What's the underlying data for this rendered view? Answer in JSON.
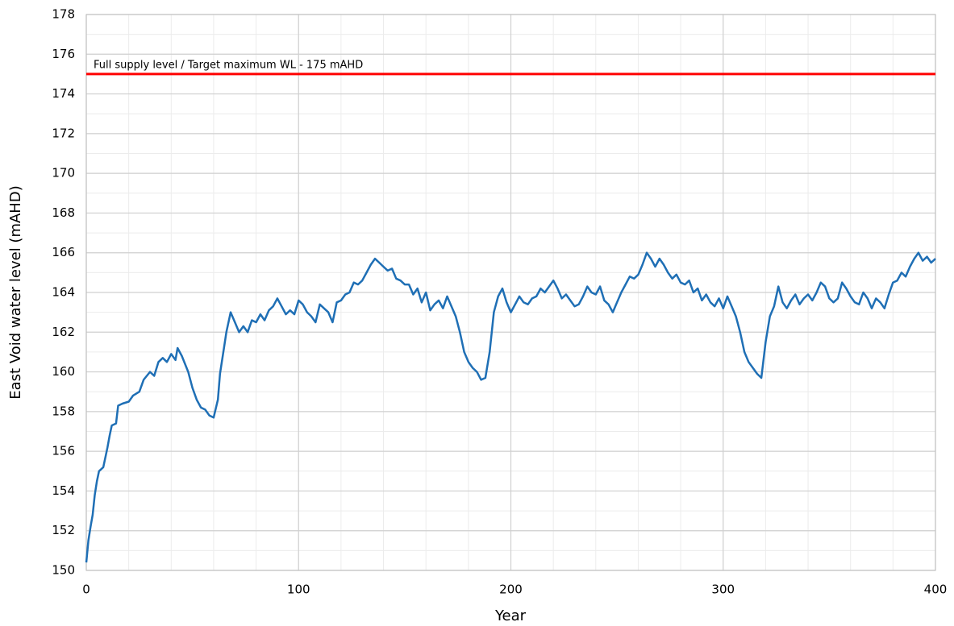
{
  "chart_data": {
    "type": "line",
    "xlabel": "Year",
    "ylabel": "East Void water level (mAHD)",
    "xlim": [
      0,
      400
    ],
    "xticks": [
      0,
      100,
      200,
      300,
      400
    ],
    "ylim": [
      150,
      178
    ],
    "yticks": [
      150,
      152,
      154,
      156,
      158,
      160,
      162,
      164,
      166,
      168,
      170,
      172,
      174,
      176,
      178
    ],
    "grid": true,
    "minor_grid": {
      "x": 20,
      "y": 1
    },
    "reference_line": {
      "value": 175,
      "label": "Full supply level / Target maximum WL - 175 mAHD",
      "color": "#ff0000"
    },
    "x": [
      0,
      1,
      2,
      3,
      4,
      5,
      6,
      8,
      10,
      11,
      12,
      14,
      15,
      17,
      20,
      22,
      25,
      27,
      30,
      32,
      34,
      36,
      38,
      40,
      42,
      43,
      45,
      48,
      50,
      52,
      54,
      56,
      58,
      60,
      62,
      63,
      65,
      66,
      68,
      70,
      72,
      74,
      76,
      78,
      80,
      82,
      84,
      86,
      88,
      90,
      92,
      94,
      96,
      98,
      100,
      102,
      104,
      106,
      108,
      110,
      112,
      114,
      116,
      118,
      120,
      122,
      124,
      126,
      128,
      130,
      132,
      134,
      136,
      138,
      140,
      142,
      144,
      146,
      148,
      150,
      152,
      154,
      156,
      158,
      160,
      162,
      164,
      166,
      168,
      170,
      172,
      174,
      176,
      178,
      180,
      182,
      184,
      186,
      188,
      190,
      192,
      194,
      196,
      198,
      200,
      202,
      204,
      206,
      208,
      210,
      212,
      214,
      216,
      218,
      220,
      222,
      224,
      226,
      228,
      230,
      232,
      234,
      236,
      238,
      240,
      242,
      244,
      246,
      248,
      250,
      252,
      254,
      256,
      258,
      260,
      262,
      264,
      266,
      268,
      270,
      272,
      274,
      276,
      278,
      280,
      282,
      284,
      286,
      288,
      290,
      292,
      294,
      296,
      298,
      300,
      302,
      304,
      306,
      308,
      310,
      312,
      314,
      316,
      318,
      320,
      322,
      324,
      326,
      328,
      330,
      332,
      334,
      336,
      338,
      340,
      342,
      344,
      346,
      348,
      350,
      352,
      354,
      356,
      358,
      360,
      362,
      364,
      366,
      368,
      370,
      372,
      374,
      376,
      378,
      380,
      382,
      384,
      386,
      388,
      390,
      392,
      394,
      396,
      398,
      400
    ],
    "series": [
      {
        "color": "#1f6fb5",
        "values": [
          150.4,
          151.5,
          152.2,
          152.8,
          153.8,
          154.5,
          155.0,
          155.2,
          156.2,
          156.8,
          157.3,
          157.4,
          158.3,
          158.4,
          158.5,
          158.8,
          159.0,
          159.6,
          160.0,
          159.8,
          160.5,
          160.7,
          160.5,
          160.9,
          160.6,
          161.2,
          160.8,
          160.0,
          159.2,
          158.6,
          158.2,
          158.1,
          157.8,
          157.7,
          158.6,
          159.9,
          161.3,
          162.0,
          163.0,
          162.5,
          162.0,
          162.3,
          162.0,
          162.6,
          162.5,
          162.9,
          162.6,
          163.1,
          163.3,
          163.7,
          163.3,
          162.9,
          163.1,
          162.9,
          163.6,
          163.4,
          163.0,
          162.8,
          162.5,
          163.4,
          163.2,
          163.0,
          162.5,
          163.5,
          163.6,
          163.9,
          164.0,
          164.5,
          164.4,
          164.6,
          165.0,
          165.4,
          165.7,
          165.5,
          165.3,
          165.1,
          165.2,
          164.7,
          164.6,
          164.4,
          164.4,
          163.9,
          164.2,
          163.5,
          164.0,
          163.1,
          163.4,
          163.6,
          163.2,
          163.8,
          163.3,
          162.8,
          162.0,
          161.0,
          160.5,
          160.2,
          160.0,
          159.6,
          159.7,
          161.0,
          163.0,
          163.8,
          164.2,
          163.5,
          163.0,
          163.4,
          163.8,
          163.5,
          163.4,
          163.7,
          163.8,
          164.2,
          164.0,
          164.3,
          164.6,
          164.2,
          163.7,
          163.9,
          163.6,
          163.3,
          163.4,
          163.8,
          164.3,
          164.0,
          163.9,
          164.3,
          163.6,
          163.4,
          163.0,
          163.5,
          164.0,
          164.4,
          164.8,
          164.7,
          164.9,
          165.4,
          166.0,
          165.7,
          165.3,
          165.7,
          165.4,
          165.0,
          164.7,
          164.9,
          164.5,
          164.4,
          164.6,
          164.0,
          164.2,
          163.6,
          163.9,
          163.5,
          163.3,
          163.7,
          163.2,
          163.8,
          163.3,
          162.8,
          162.0,
          161.0,
          160.5,
          160.2,
          159.9,
          159.7,
          161.5,
          162.8,
          163.3,
          164.3,
          163.5,
          163.2,
          163.6,
          163.9,
          163.4,
          163.7,
          163.9,
          163.6,
          164.0,
          164.5,
          164.3,
          163.7,
          163.5,
          163.7,
          164.5,
          164.2,
          163.8,
          163.5,
          163.4,
          164.0,
          163.7,
          163.2,
          163.7,
          163.5,
          163.2,
          163.9,
          164.5,
          164.6,
          165.0,
          164.8,
          165.3,
          165.7,
          166.0,
          165.6,
          165.8,
          165.5,
          165.7
        ]
      }
    ]
  }
}
